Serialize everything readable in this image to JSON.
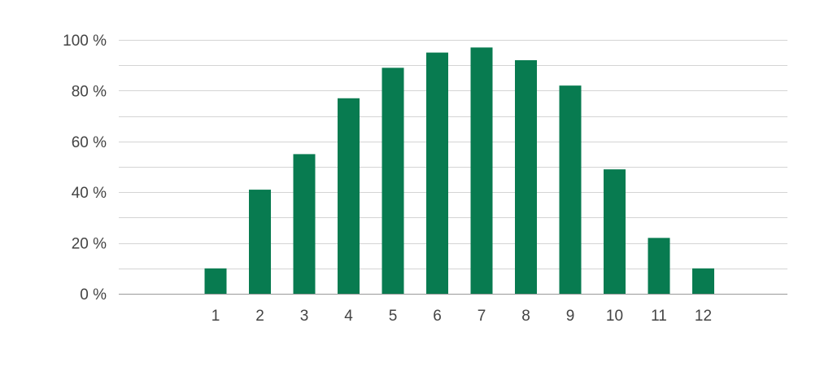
{
  "chart_data": {
    "type": "bar",
    "title": "",
    "xlabel": "",
    "ylabel": "",
    "categories": [
      "1",
      "2",
      "3",
      "4",
      "5",
      "6",
      "7",
      "8",
      "9",
      "10",
      "11",
      "12"
    ],
    "values": [
      10,
      41,
      55,
      77,
      89,
      95,
      97,
      92,
      82,
      49,
      22,
      10
    ],
    "ylim": [
      0,
      100
    ],
    "yticks": [
      0,
      20,
      40,
      60,
      80,
      100
    ],
    "ytick_labels": [
      "0 %",
      "20 %",
      "40 %",
      "60 %",
      "80 %",
      "100 %"
    ],
    "minor_grid_step": 10,
    "grid": true,
    "legend": "none",
    "bar_color": "#087b50"
  }
}
